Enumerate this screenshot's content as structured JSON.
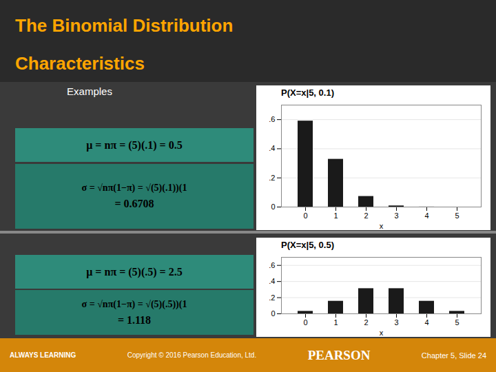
{
  "title": "The Binomial Distribution",
  "subtitle": "Characteristics",
  "annotations": [
    "Examples",
    "ALWAYS LEARNING",
    "Copyright © 2016 Pearson Education, Ltd.",
    "PEARSON",
    "Chapter 5, Slide 24"
  ],
  "chart_data": [
    {
      "type": "bar",
      "title": "P(X=x|5, 0.1)",
      "xlabel": "x",
      "categories": [
        "0",
        "1",
        "2",
        "3",
        "4",
        "5"
      ],
      "values": [
        0.5905,
        0.3281,
        0.0729,
        0.0081,
        0.0005,
        1e-05
      ],
      "color": "#1a1a1a",
      "ylim": [
        0,
        0.7
      ],
      "yticks": [
        0,
        {
          "value": 0.2,
          "label": ".2"
        },
        {
          "value": 0.4,
          "label": ".4"
        },
        {
          "value": 0.6,
          "label": ".6"
        }
      ],
      "grid": true,
      "annotations": [
        "μ = nπ = (5)(.1) = 0.5",
        "σ = √nπ(1−π) = √(5)(.1))(1",
        "= 0.6708"
      ]
    },
    {
      "type": "bar",
      "title": "P(X=x|5, 0.5)",
      "xlabel": "x",
      "categories": [
        "0",
        "1",
        "2",
        "3",
        "4",
        "5"
      ],
      "values": [
        0.0313,
        0.1563,
        0.3125,
        0.3125,
        0.1563,
        0.0313
      ],
      "color": "#1a1a1a",
      "ylim": [
        0,
        0.7
      ],
      "yticks": [
        0,
        {
          "value": 0.2,
          "label": ".2"
        },
        {
          "value": 0.4,
          "label": ".4"
        },
        {
          "value": 0.6,
          "label": ".6"
        }
      ],
      "grid": true,
      "annotations": [
        "μ = nπ = (5)(.5) = 2.5",
        "σ = √nπ(1−π) = √(5)(.5))(1",
        "= 1.118"
      ]
    }
  ]
}
